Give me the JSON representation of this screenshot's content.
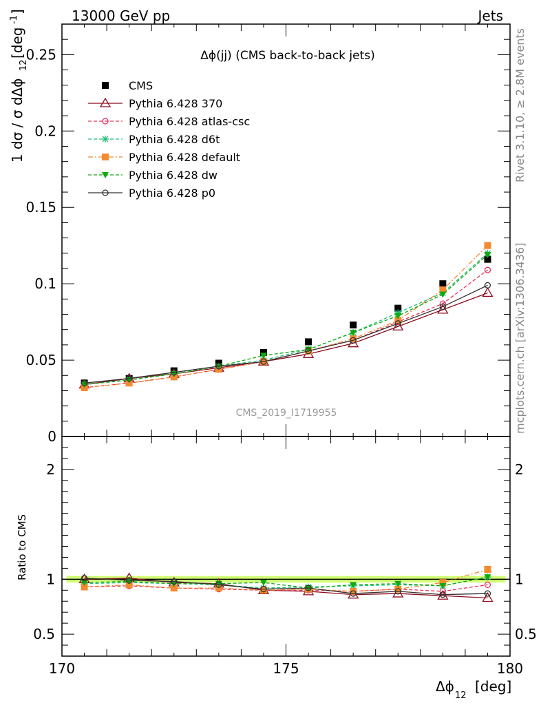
{
  "header": {
    "left": "13000 GeV pp",
    "right": "Jets"
  },
  "side_labels": {
    "rivet": "Rivet 3.1.10, ≥ 2.8M events",
    "mcplots": "mcplots.cern.ch [arXiv:1306.3436]"
  },
  "chart_data": [
    {
      "type": "scatter",
      "title": "Δϕ(jj) (CMS back-to-back jets)",
      "watermark": "CMS_2019_I1719955",
      "ylabel": "1/σ dσ/dΔϕ_12 [deg^-1]",
      "xlabel": "Δϕ_12 [deg]",
      "xlim": [
        170,
        180
      ],
      "ylim": [
        0,
        0.27
      ],
      "x_ticks": [
        170,
        175,
        180
      ],
      "y_ticks": [
        0,
        0.05,
        0.1,
        0.15,
        0.2,
        0.25
      ],
      "y_tick_labels": [
        "0",
        "0.05",
        "0.1",
        "0.15",
        "0.2",
        "0.25"
      ],
      "legend_position": "top-left",
      "x": [
        170.5,
        171.5,
        172.5,
        173.5,
        174.5,
        175.5,
        176.5,
        177.5,
        178.5,
        179.5
      ],
      "series": [
        {
          "name": "CMS",
          "color": "#000000",
          "marker": "square",
          "line": "none",
          "values": [
            0.035,
            0.038,
            0.043,
            0.048,
            0.055,
            0.062,
            0.073,
            0.084,
            0.1,
            0.116
          ]
        },
        {
          "name": "Pythia 6.428 370",
          "color": "#8b0a1e",
          "marker": "triangle-open",
          "line": "solid",
          "values": [
            0.034,
            0.038,
            0.041,
            0.045,
            0.049,
            0.054,
            0.061,
            0.072,
            0.083,
            0.094
          ]
        },
        {
          "name": "Pythia 6.428 atlas-csc",
          "color": "#e8305a",
          "marker": "circle-open",
          "line": "dashed",
          "values": [
            0.032,
            0.035,
            0.039,
            0.044,
            0.049,
            0.056,
            0.063,
            0.075,
            0.087,
            0.109
          ]
        },
        {
          "name": "Pythia 6.428 d6t",
          "color": "#1fbf7a",
          "marker": "star",
          "line": "dashed",
          "values": [
            0.034,
            0.037,
            0.041,
            0.046,
            0.05,
            0.057,
            0.068,
            0.081,
            0.094,
            0.12
          ]
        },
        {
          "name": "Pythia 6.428 default",
          "color": "#f28a30",
          "marker": "square",
          "line": "dashdot",
          "values": [
            0.032,
            0.035,
            0.039,
            0.044,
            0.049,
            0.056,
            0.064,
            0.076,
            0.096,
            0.125
          ]
        },
        {
          "name": "Pythia 6.428 dw",
          "color": "#12a80f",
          "marker": "triangle-down",
          "line": "dashed",
          "values": [
            0.034,
            0.037,
            0.041,
            0.046,
            0.053,
            0.057,
            0.068,
            0.079,
            0.093,
            0.119
          ]
        },
        {
          "name": "Pythia 6.428 p0",
          "color": "#333333",
          "marker": "circle-open",
          "line": "solid",
          "values": [
            0.035,
            0.038,
            0.042,
            0.046,
            0.049,
            0.056,
            0.063,
            0.074,
            0.085,
            0.099
          ]
        }
      ]
    },
    {
      "type": "line",
      "ylabel": "Ratio to CMS",
      "xlim": [
        170,
        180
      ],
      "ylim": [
        0.3,
        2.3
      ],
      "y_ticks": [
        0.5,
        1,
        2
      ],
      "y_tick_labels": [
        "0.5",
        "1",
        "2"
      ],
      "reference_line": 1,
      "uncertainty_band": [
        0.97,
        1.03
      ],
      "band_color": "#ccff66",
      "x": [
        170.5,
        171.5,
        172.5,
        173.5,
        174.5,
        175.5,
        176.5,
        177.5,
        178.5,
        179.5
      ],
      "series": [
        {
          "name": "Pythia 6.428 370",
          "values": [
            1.0,
            1.01,
            0.97,
            0.96,
            0.9,
            0.89,
            0.86,
            0.87,
            0.85,
            0.83
          ]
        },
        {
          "name": "Pythia 6.428 atlas-csc",
          "values": [
            0.93,
            0.94,
            0.92,
            0.91,
            0.9,
            0.9,
            0.89,
            0.91,
            0.89,
            0.95
          ]
        },
        {
          "name": "Pythia 6.428 d6t",
          "values": [
            0.96,
            0.97,
            0.96,
            0.95,
            0.92,
            0.93,
            0.94,
            0.95,
            0.94,
            1.02
          ]
        },
        {
          "name": "Pythia 6.428 default",
          "values": [
            0.93,
            0.95,
            0.92,
            0.92,
            0.9,
            0.91,
            0.89,
            0.91,
            0.97,
            1.09
          ]
        },
        {
          "name": "Pythia 6.428 dw",
          "values": [
            0.97,
            0.98,
            0.96,
            0.96,
            0.97,
            0.92,
            0.95,
            0.96,
            0.94,
            1.02
          ]
        },
        {
          "name": "Pythia 6.428 p0",
          "values": [
            1.01,
            0.99,
            0.98,
            0.95,
            0.91,
            0.92,
            0.87,
            0.89,
            0.86,
            0.87
          ]
        }
      ]
    }
  ]
}
